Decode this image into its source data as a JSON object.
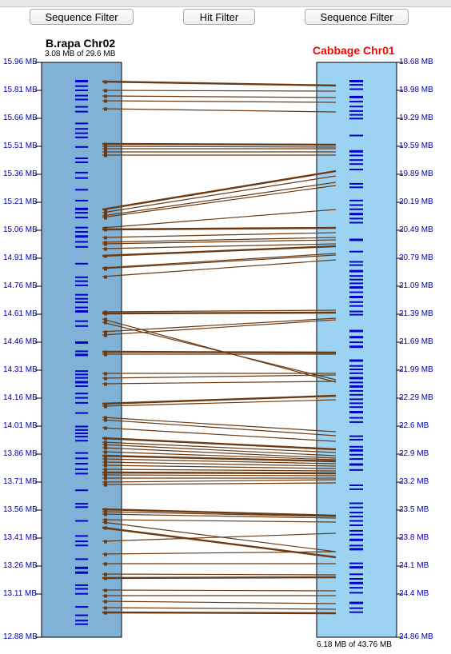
{
  "toolbar": {
    "sequence_filter_left": "Sequence Filter",
    "hit_filter": "Hit Filter",
    "sequence_filter_right": "Sequence Filter"
  },
  "left_track": {
    "title": "B.rapa Chr02",
    "subtitle": "3.08 MB of 29.6 MB",
    "ticks": [
      "15.96 MB",
      "15.81 MB",
      "15.66 MB",
      "15.51 MB",
      "15.36 MB",
      "15.21 MB",
      "15.06 MB",
      "14.91 MB",
      "14.76 MB",
      "14.61 MB",
      "14.46 MB",
      "14.31 MB",
      "14.16 MB",
      "14.01 MB",
      "13.86 MB",
      "13.71 MB",
      "13.56 MB",
      "13.41 MB",
      "13.26 MB",
      "13.11 MB",
      "12.88 MB"
    ],
    "color": "#7fb2d6"
  },
  "right_track": {
    "title": "Cabbage Chr01",
    "subtitle": "6.18 MB of 43.76 MB",
    "ticks": [
      "18.68 MB",
      "18.98 MB",
      "19.29 MB",
      "19.59 MB",
      "19.89 MB",
      "20.19 MB",
      "20.49 MB",
      "20.79 MB",
      "21.09 MB",
      "21.39 MB",
      "21.69 MB",
      "21.99 MB",
      "22.29 MB",
      "22.6 MB",
      "22.9 MB",
      "23.2 MB",
      "23.5 MB",
      "23.8 MB",
      "24.1 MB",
      "24.4 MB",
      "24.86 MB"
    ],
    "color": "#9cd3f2",
    "title_color": "#ff0000"
  },
  "colors": {
    "hit_line": "#6b3a12",
    "gene_mark": "#0000cc",
    "tick_text": "#0000aa"
  }
}
